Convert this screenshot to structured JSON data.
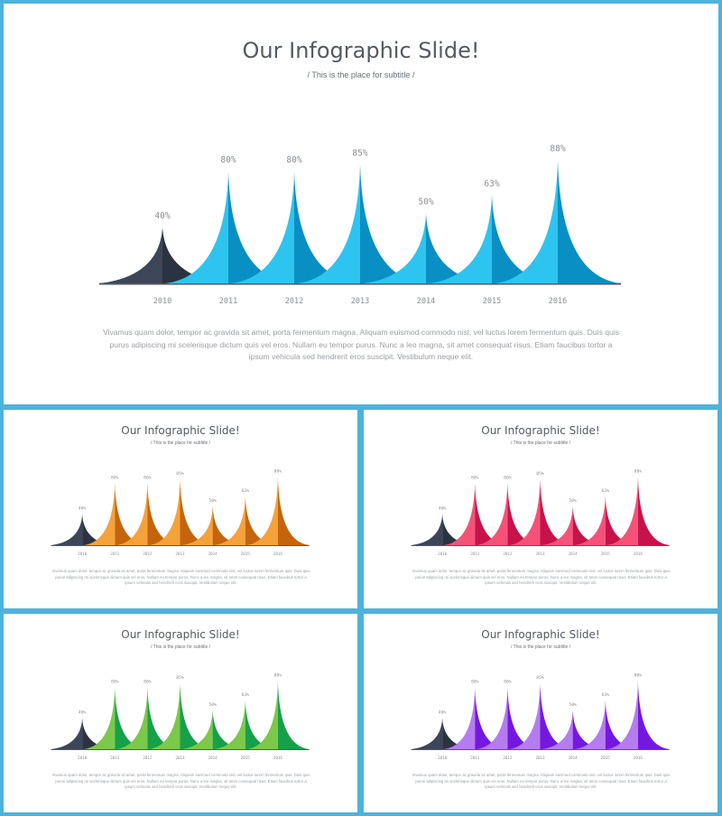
{
  "slides": [
    {
      "title": "Our Infographic Slide!",
      "subtitle": "/ This is the place for subtitle /",
      "body": "Vivamus quam dolor, tempor ac gravida sit amet, porta fermentum magna. Aliquam euismod commodo nisl, vel luctus lorem fermentum quis. Duis quis purus adipiscing mi scelerisque dictum quis vel eros. Nullam eu tempor purus. Nunc a leo magna, sit amet consequat risus. Etiam faucibus tortor a ipsum vehicula sed hendrerit eros suscipit. Vestibulum neque elit.",
      "accent_light": "#2ec4f0",
      "accent_dark": "#0a8fc4"
    },
    {
      "title": "Our Infographic Slide!",
      "subtitle": "/ This is the place for subtitle /",
      "body": "Vivamus quam dolor, tempor ac gravida sit amet, porta fermentum magna. Aliquam euismod commodo nisl, vel luctus lorem fermentum quis. Duis quis purus adipiscing mi scelerisque dictum quis vel eros. Nullam eu tempor purus. Nunc a leo magna, sit amet consequat risus. Etiam faucibus tortor a ipsum vehicula sed hendrerit eros suscipit. Vestibulum neque elit.",
      "accent_light": "#f5a23a",
      "accent_dark": "#c4650e"
    },
    {
      "title": "Our Infographic Slide!",
      "subtitle": "/ This is the place for subtitle /",
      "body": "Vivamus quam dolor, tempor ac gravida sit amet, porta fermentum magna. Aliquam euismod commodo nisl, vel luctus lorem fermentum quis. Duis quis purus adipiscing mi scelerisque dictum quis vel eros. Nullam eu tempor purus. Nunc a leo magna, sit amet consequat risus. Etiam faucibus tortor a ipsum vehicula sed hendrerit eros suscipit. Vestibulum neque elit.",
      "accent_light": "#f5527a",
      "accent_dark": "#c8124a"
    },
    {
      "title": "Our Infographic Slide!",
      "subtitle": "/ This is the place for subtitle /",
      "body": "Vivamus quam dolor, tempor ac gravida sit amet, porta fermentum magna. Aliquam euismod commodo nisl, vel luctus lorem fermentum quis. Duis quis purus adipiscing mi scelerisque dictum quis vel eros. Nullam eu tempor purus. Nunc a leo magna, sit amet consequat risus. Etiam faucibus tortor a ipsum vehicula sed hendrerit eros suscipit. Vestibulum neque elit.",
      "accent_light": "#7cc84a",
      "accent_dark": "#17a04a"
    },
    {
      "title": "Our Infographic Slide!",
      "subtitle": "/ This is the place for subtitle /",
      "body": "Vivamus quam dolor, tempor ac gravida sit amet, porta fermentum magna. Aliquam euismod commodo nisl, vel luctus lorem fermentum quis. Duis quis purus adipiscing mi scelerisque dictum quis vel eros. Nullam eu tempor purus. Nunc a leo magna, sit amet consequat risus. Etiam faucibus tortor a ipsum vehicula sed hendrerit eros suscipit. Vestibulum neque elit.",
      "accent_light": "#b57cf0",
      "accent_dark": "#7418e0"
    }
  ],
  "chart_data": {
    "type": "area",
    "categories": [
      "2010",
      "2011",
      "2012",
      "2013",
      "2014",
      "2015",
      "2016"
    ],
    "values": [
      40,
      80,
      80,
      85,
      50,
      63,
      88
    ],
    "value_labels": [
      "40%",
      "80%",
      "80%",
      "85%",
      "50%",
      "63%",
      "88%"
    ],
    "first_peak_color": "#3d4658",
    "first_peak_dark": "#2b3342",
    "baseline_color": "#555a62"
  }
}
